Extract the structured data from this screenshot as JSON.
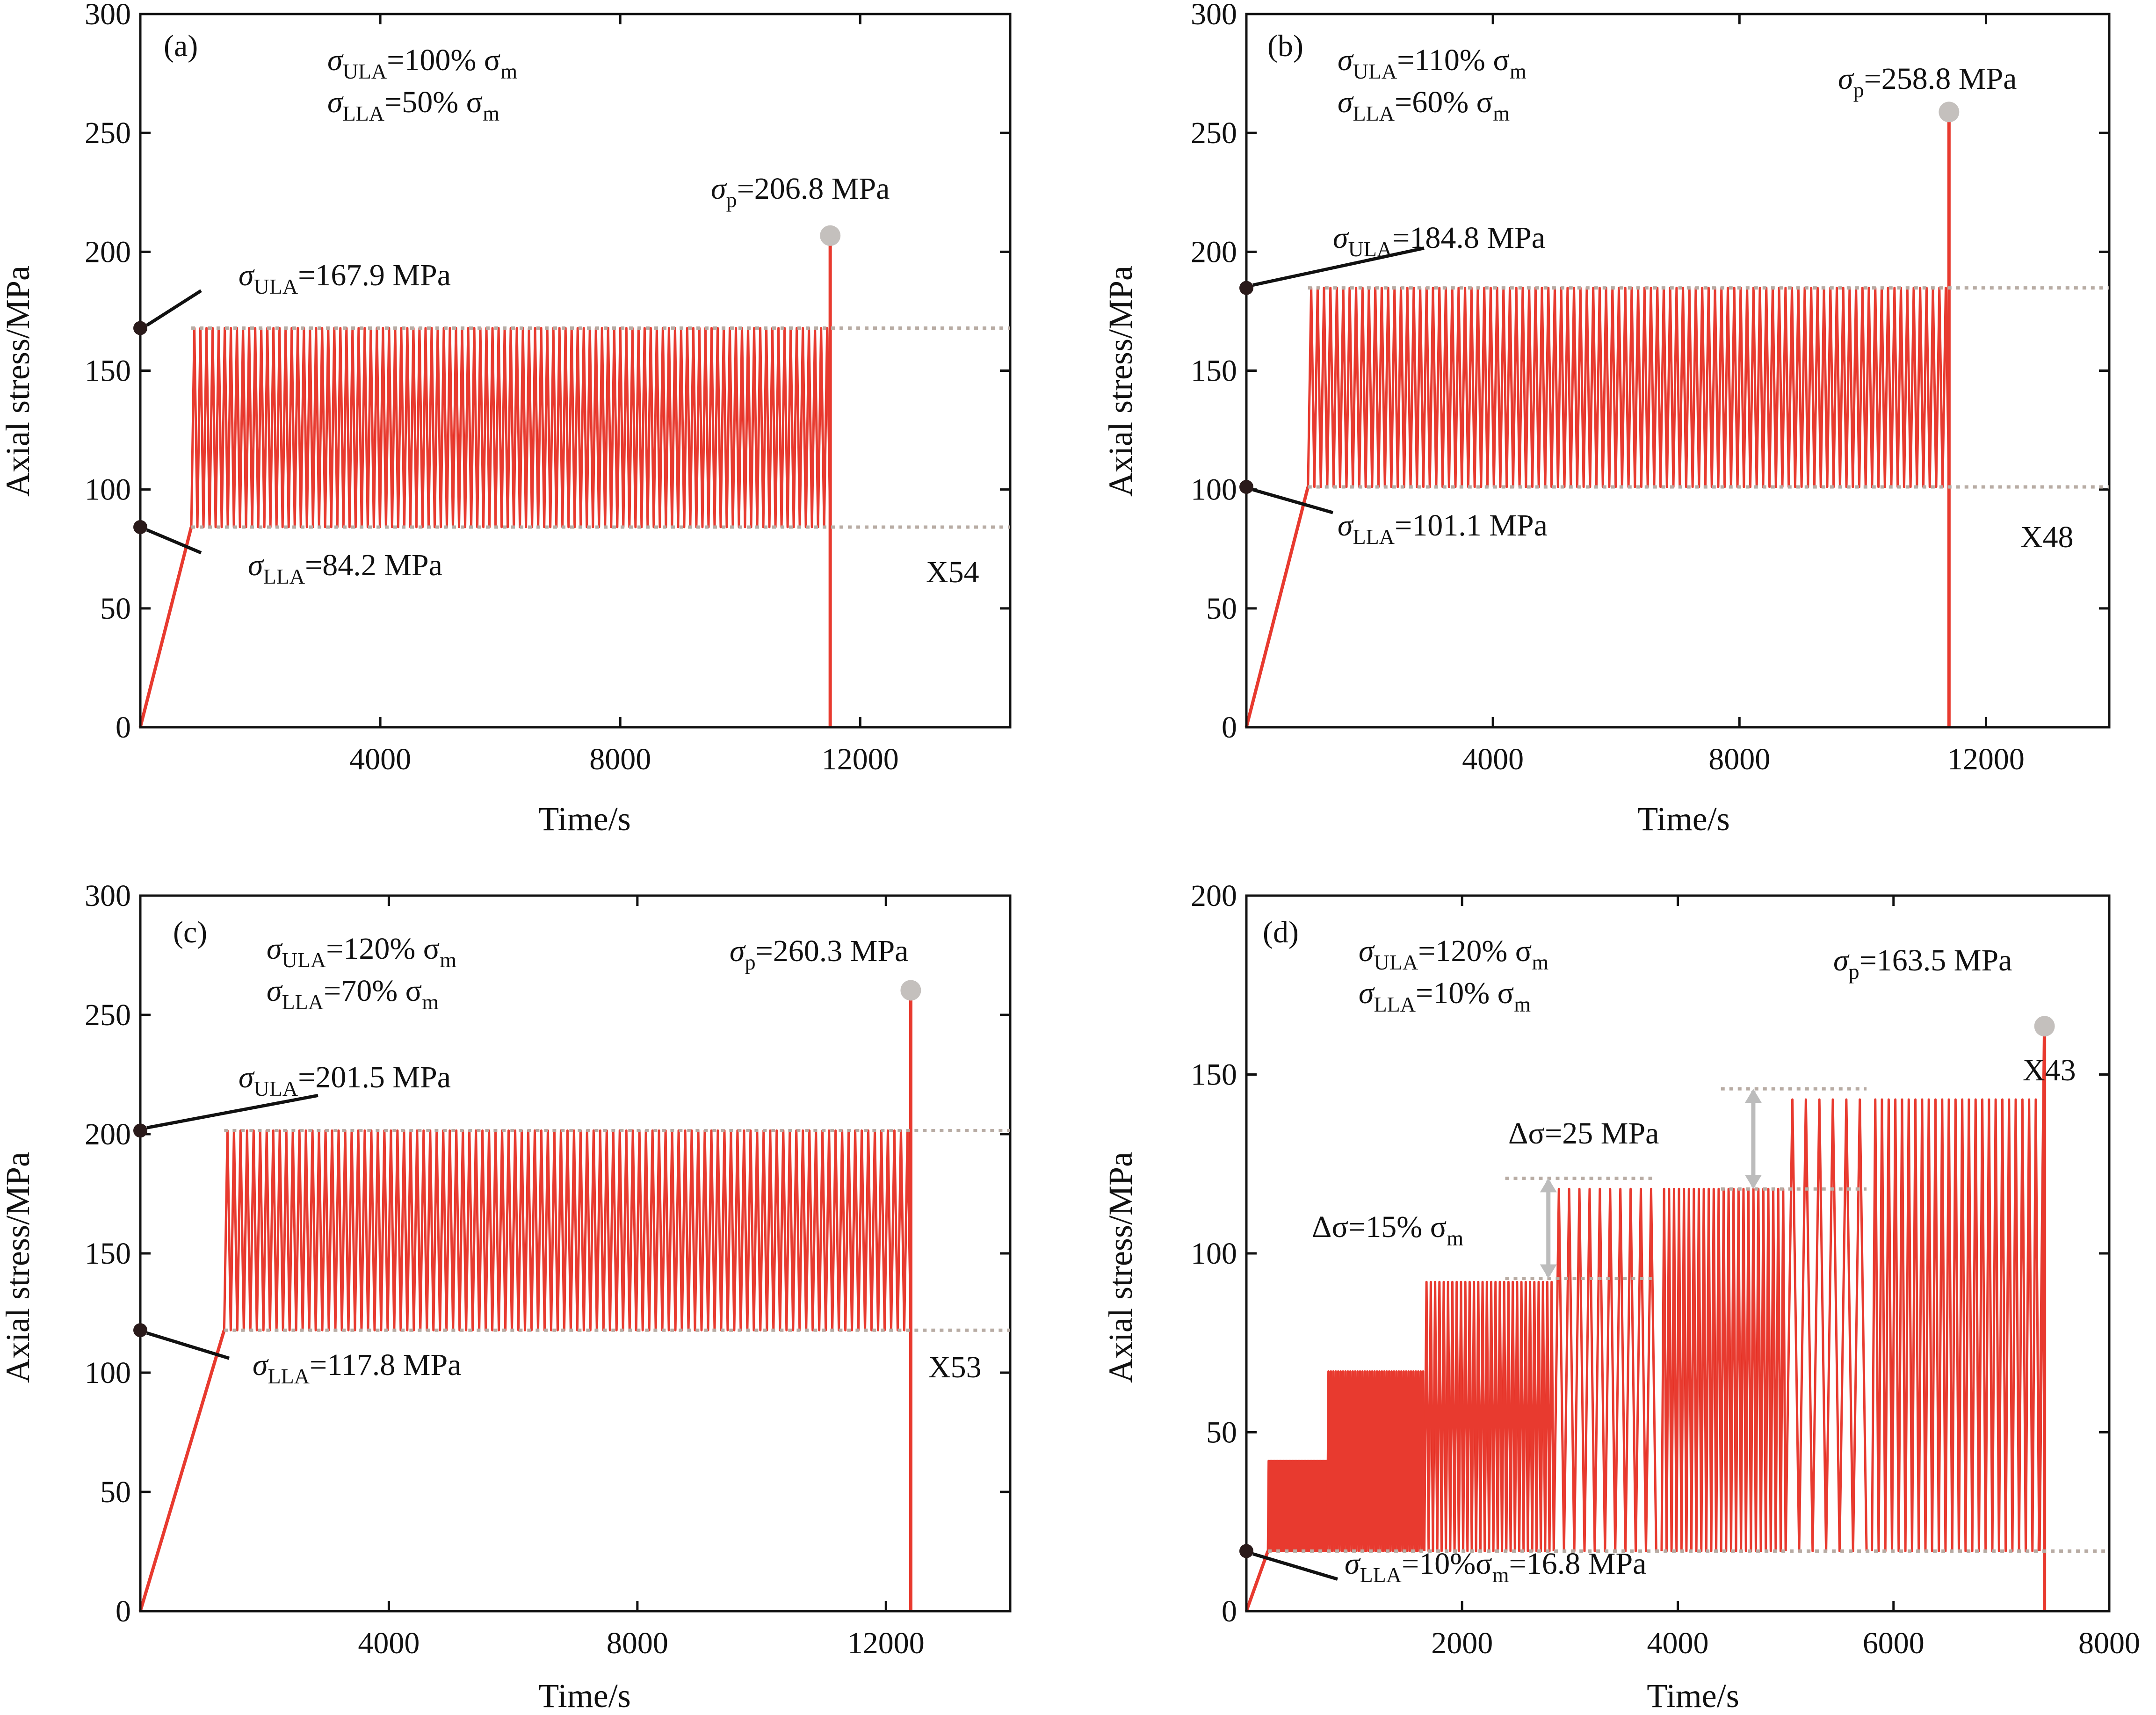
{
  "chart_data": [
    {
      "type": "line",
      "panel_label": "(a)",
      "xlabel": "Time/s",
      "ylabel": "Axial stress/MPa",
      "xlim": [
        0,
        14500
      ],
      "ylim": [
        0,
        300
      ],
      "xticks": [
        4000,
        8000,
        12000
      ],
      "yticks": [
        0,
        50,
        100,
        150,
        200,
        250,
        300
      ],
      "specimen": "X54",
      "condition_upper": {
        "symbol": "σ",
        "sub": "ULA",
        "text": "=100% σ",
        "sub2": "m"
      },
      "condition_lower": {
        "symbol": "σ",
        "sub": "LLA",
        "text": "=50% σ",
        "sub2": "m"
      },
      "upper_limit": {
        "value": 167.9,
        "symbol": "σ",
        "sub": "ULA",
        "text": "=167.9 MPa"
      },
      "lower_limit": {
        "value": 84.2,
        "symbol": "σ",
        "sub": "LLA",
        "text": "=84.2 MPa"
      },
      "peak": {
        "x": 11500,
        "value": 206.8,
        "symbol": "σ",
        "sub": "p",
        "text": "=206.8 MPa"
      },
      "series": [
        {
          "name": "axial stress",
          "segments": [
            {
              "t_start": 850,
              "t_end": 11500,
              "lower": 84.2,
              "upper": 167.9,
              "cycles": 105
            }
          ],
          "ramp_end_t": 850,
          "failure_t": 11500
        }
      ]
    },
    {
      "type": "line",
      "panel_label": "(b)",
      "xlabel": "Time/s",
      "ylabel": "Axial stress/MPa",
      "xlim": [
        0,
        14000
      ],
      "ylim": [
        0,
        300
      ],
      "xticks": [
        4000,
        8000,
        12000
      ],
      "yticks": [
        0,
        50,
        100,
        150,
        200,
        250,
        300
      ],
      "specimen": "X48",
      "condition_upper": {
        "symbol": "σ",
        "sub": "ULA",
        "text": "=110% σ",
        "sub2": "m"
      },
      "condition_lower": {
        "symbol": "σ",
        "sub": "LLA",
        "text": "=60% σ",
        "sub2": "m"
      },
      "upper_limit": {
        "value": 184.8,
        "symbol": "σ",
        "sub": "ULA",
        "text": "=184.8 MPa"
      },
      "lower_limit": {
        "value": 101.1,
        "symbol": "σ",
        "sub": "LLA",
        "text": "=101.1 MPa"
      },
      "peak": {
        "x": 11400,
        "value": 258.8,
        "symbol": "σ",
        "sub": "p",
        "text": "=258.8 MPa"
      },
      "series": [
        {
          "name": "axial stress",
          "segments": [
            {
              "t_start": 1000,
              "t_end": 11400,
              "lower": 101.1,
              "upper": 184.8,
              "cycles": 100
            }
          ],
          "ramp_end_t": 1000,
          "failure_t": 11400
        }
      ]
    },
    {
      "type": "line",
      "panel_label": "(c)",
      "xlabel": "Time/s",
      "ylabel": "Axial stress/MPa",
      "xlim": [
        0,
        14000
      ],
      "ylim": [
        0,
        300
      ],
      "xticks": [
        4000,
        8000,
        12000
      ],
      "yticks": [
        0,
        50,
        100,
        150,
        200,
        250,
        300
      ],
      "specimen": "X53",
      "condition_upper": {
        "symbol": "σ",
        "sub": "ULA",
        "text": "=120% σ",
        "sub2": "m"
      },
      "condition_lower": {
        "symbol": "σ",
        "sub": "LLA",
        "text": "=70% σ",
        "sub2": "m"
      },
      "upper_limit": {
        "value": 201.5,
        "symbol": "σ",
        "sub": "ULA",
        "text": "=201.5 MPa"
      },
      "lower_limit": {
        "value": 117.8,
        "symbol": "σ",
        "sub": "LLA",
        "text": "=117.8 MPa"
      },
      "peak": {
        "x": 12400,
        "value": 260.3,
        "symbol": "σ",
        "sub": "p",
        "text": "=260.3 MPa"
      },
      "series": [
        {
          "name": "axial stress",
          "segments": [
            {
              "t_start": 1350,
              "t_end": 12400,
              "lower": 117.8,
              "upper": 201.5,
              "cycles": 105
            }
          ],
          "ramp_end_t": 1350,
          "failure_t": 12400
        }
      ]
    },
    {
      "type": "line",
      "panel_label": "(d)",
      "xlabel": "Time/s",
      "ylabel": "Axial stress/MPa",
      "xlim": [
        0,
        8000
      ],
      "ylim": [
        0,
        200
      ],
      "xticks": [
        2000,
        4000,
        6000,
        8000
      ],
      "yticks": [
        0,
        50,
        100,
        150,
        200
      ],
      "specimen": "X43",
      "condition_upper": {
        "symbol": "σ",
        "sub": "ULA",
        "text": "=120% σ",
        "sub2": "m"
      },
      "condition_lower": {
        "symbol": "σ",
        "sub": "LLA",
        "text": "=10% σ",
        "sub2": "m"
      },
      "lower_limit": {
        "value": 16.8,
        "symbol": "σ",
        "sub": "LLA",
        "text": "=10%σ",
        "sub2": "m",
        "text2": "=16.8 MPa"
      },
      "peak": {
        "x": 7400,
        "value": 163.5,
        "symbol": "σ",
        "sub": "p",
        "text": "=163.5 MPa"
      },
      "step_annotation_1": {
        "prefix": "Δσ",
        "text": "=15% σ",
        "sub": "m",
        "from": 93,
        "to": 121
      },
      "step_annotation_2": {
        "prefix": "Δσ",
        "text": "=25 MPa",
        "from": 118,
        "to": 146
      },
      "series": [
        {
          "name": "axial stress",
          "ramp_end_t": 200,
          "failure_t": 7400,
          "segments": [
            {
              "t_start": 200,
              "t_end": 750,
              "lower": 16.8,
              "upper": 42,
              "cycles": 40
            },
            {
              "t_start": 750,
              "t_end": 1650,
              "lower": 16.8,
              "upper": 67,
              "cycles": 40
            },
            {
              "t_start": 1650,
              "t_end": 2850,
              "lower": 16.8,
              "upper": 92,
              "cycles": 30
            },
            {
              "t_start": 2850,
              "t_end": 3800,
              "lower": 16.8,
              "upper": 118,
              "cycles": 10
            },
            {
              "t_start": 3850,
              "t_end": 5000,
              "lower": 16.8,
              "upper": 118,
              "cycles": 25
            },
            {
              "t_start": 5000,
              "t_end": 5750,
              "lower": 16.8,
              "upper": 143,
              "cycles": 6
            },
            {
              "t_start": 5800,
              "t_end": 7350,
              "lower": 16.8,
              "upper": 143,
              "cycles": 25
            }
          ]
        }
      ]
    }
  ]
}
